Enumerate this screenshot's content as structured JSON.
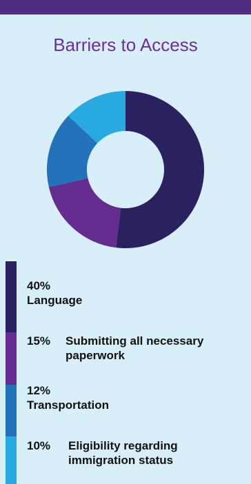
{
  "title": "Barriers to Access",
  "colors": {
    "background": "#d8eef9",
    "top_bar": "#4c2f7f",
    "title": "#6a2f9a"
  },
  "chart_data": {
    "type": "pie",
    "style": "donut",
    "title": "Barriers to Access",
    "slices": [
      {
        "label": "Language",
        "percent_text": "40%",
        "value": 40,
        "color": "#2a2160"
      },
      {
        "label": "Submitting all necessary paperwork",
        "percent_text": "15%",
        "value": 15,
        "color": "#652c90"
      },
      {
        "label": "Transportation",
        "percent_text": "12%",
        "value": 12,
        "color": "#2372bb"
      },
      {
        "label": "Eligibility regarding immigration status",
        "percent_text": "10%",
        "value": 10,
        "color": "#28aae1"
      }
    ]
  },
  "legend": [
    {
      "pct": "40%",
      "label": "Language"
    },
    {
      "pct": "15%",
      "label": "Submitting all necessary paperwork"
    },
    {
      "pct": "12%",
      "label": "Transportation"
    },
    {
      "pct": "10%",
      "label": "Eligibility regarding immigration status"
    }
  ]
}
